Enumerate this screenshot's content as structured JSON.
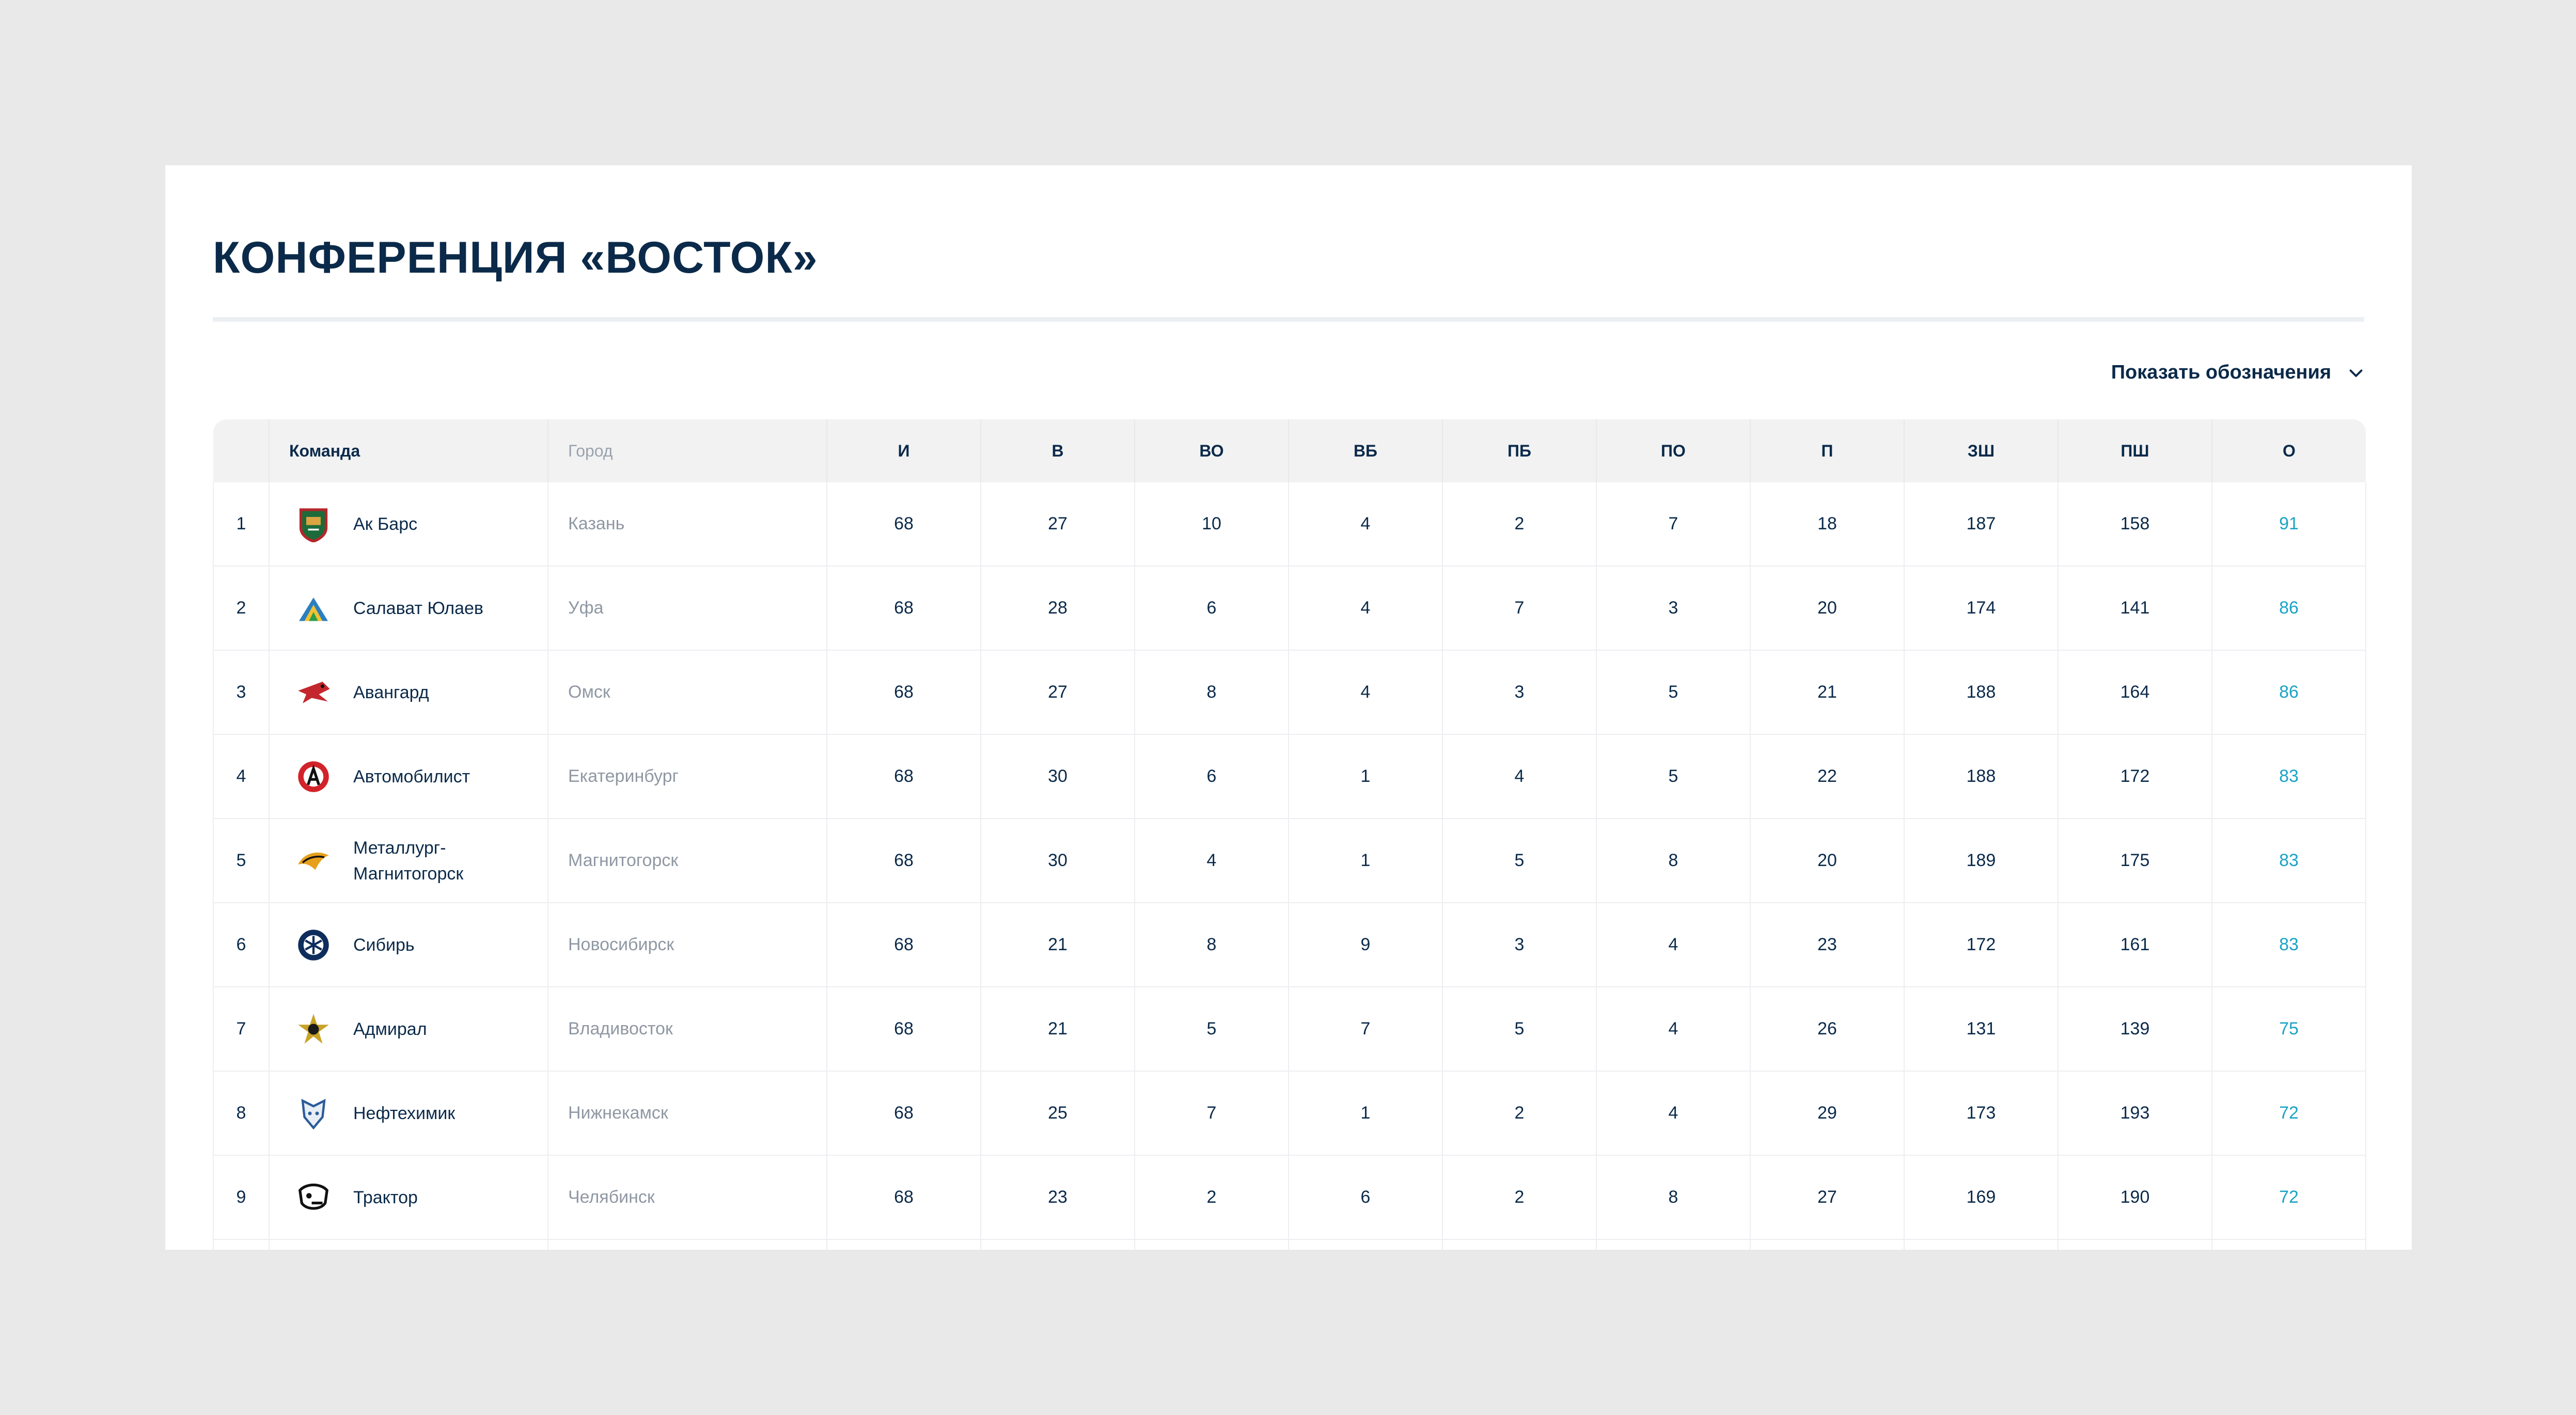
{
  "page": {
    "title": "КОНФЕРЕНЦИЯ «ВОСТОК»",
    "legend_toggle": "Показать обозначения"
  },
  "table": {
    "headers": {
      "team": "Команда",
      "city": "Город",
      "games": "И",
      "wins": "В",
      "ot_wins": "ВО",
      "so_wins": "ВБ",
      "so_losses": "ПБ",
      "ot_losses": "ПО",
      "losses": "П",
      "goals_for": "ЗШ",
      "goals_against": "ПШ",
      "points": "О"
    },
    "rows": [
      {
        "rank": "1",
        "team": "Ак Барс",
        "city": "Казань",
        "games": "68",
        "wins": "27",
        "ot_wins": "10",
        "so_wins": "4",
        "so_losses": "2",
        "ot_losses": "7",
        "losses": "18",
        "goals_for": "187",
        "goals_against": "158",
        "points": "91",
        "logo": "ak-bars-logo"
      },
      {
        "rank": "2",
        "team": "Салават Юлаев",
        "city": "Уфа",
        "games": "68",
        "wins": "28",
        "ot_wins": "6",
        "so_wins": "4",
        "so_losses": "7",
        "ot_losses": "3",
        "losses": "20",
        "goals_for": "174",
        "goals_against": "141",
        "points": "86",
        "logo": "salavat-yulaev-logo"
      },
      {
        "rank": "3",
        "team": "Авангард",
        "city": "Омск",
        "games": "68",
        "wins": "27",
        "ot_wins": "8",
        "so_wins": "4",
        "so_losses": "3",
        "ot_losses": "5",
        "losses": "21",
        "goals_for": "188",
        "goals_against": "164",
        "points": "86",
        "logo": "avangard-logo"
      },
      {
        "rank": "4",
        "team": "Автомобилист",
        "city": "Екатеринбург",
        "games": "68",
        "wins": "30",
        "ot_wins": "6",
        "so_wins": "1",
        "so_losses": "4",
        "ot_losses": "5",
        "losses": "22",
        "goals_for": "188",
        "goals_against": "172",
        "points": "83",
        "logo": "avtomobilist-logo"
      },
      {
        "rank": "5",
        "team": "Металлург-\nМагнитогорск",
        "city": "Магнитогорск",
        "games": "68",
        "wins": "30",
        "ot_wins": "4",
        "so_wins": "1",
        "so_losses": "5",
        "ot_losses": "8",
        "losses": "20",
        "goals_for": "189",
        "goals_against": "175",
        "points": "83",
        "logo": "metallurg-logo"
      },
      {
        "rank": "6",
        "team": "Сибирь",
        "city": "Новосибирск",
        "games": "68",
        "wins": "21",
        "ot_wins": "8",
        "so_wins": "9",
        "so_losses": "3",
        "ot_losses": "4",
        "losses": "23",
        "goals_for": "172",
        "goals_against": "161",
        "points": "83",
        "logo": "sibir-logo"
      },
      {
        "rank": "7",
        "team": "Адмирал",
        "city": "Владивосток",
        "games": "68",
        "wins": "21",
        "ot_wins": "5",
        "so_wins": "7",
        "so_losses": "5",
        "ot_losses": "4",
        "losses": "26",
        "goals_for": "131",
        "goals_against": "139",
        "points": "75",
        "logo": "admiral-logo"
      },
      {
        "rank": "8",
        "team": "Нефтехимик",
        "city": "Нижнекамск",
        "games": "68",
        "wins": "25",
        "ot_wins": "7",
        "so_wins": "1",
        "so_losses": "2",
        "ot_losses": "4",
        "losses": "29",
        "goals_for": "173",
        "goals_against": "193",
        "points": "72",
        "logo": "neftekhimik-logo"
      },
      {
        "rank": "9",
        "team": "Трактор",
        "city": "Челябинск",
        "games": "68",
        "wins": "23",
        "ot_wins": "2",
        "so_wins": "6",
        "so_losses": "2",
        "ot_losses": "8",
        "losses": "27",
        "goals_for": "169",
        "goals_against": "190",
        "points": "72",
        "logo": "traktor-logo"
      }
    ]
  },
  "colors": {
    "text": "#0b2a4a",
    "muted": "#8f98a3",
    "points": "#1ba3c6",
    "header_bg": "#f2f2f3",
    "page_bg": "#e9e9e9"
  }
}
